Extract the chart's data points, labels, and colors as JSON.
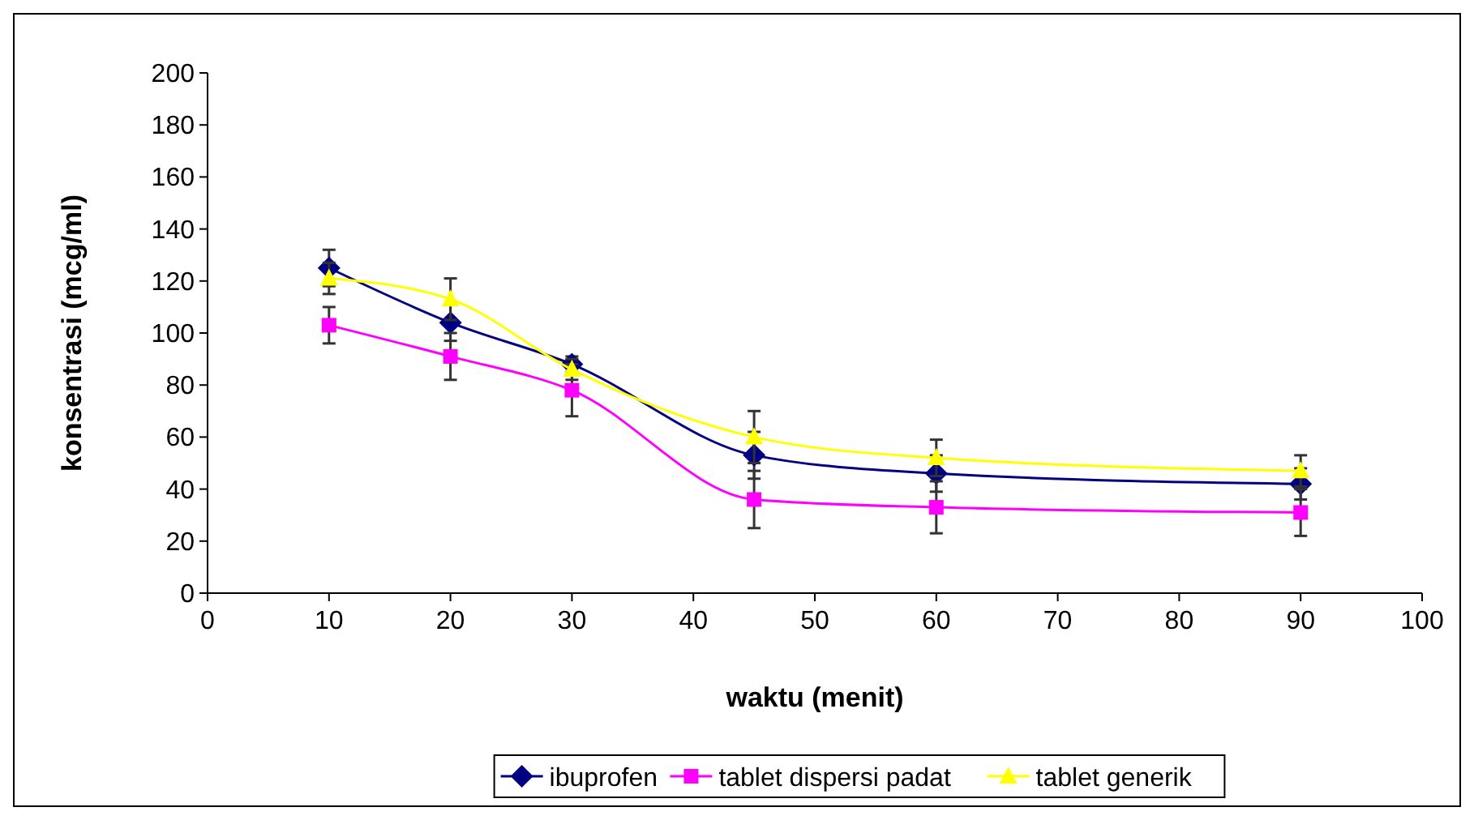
{
  "chart_data": {
    "type": "line",
    "xlabel": "waktu (menit)",
    "ylabel": "konsentrasi (mcg/ml)",
    "x": [
      10,
      20,
      30,
      45,
      60,
      90
    ],
    "xlim": [
      0,
      100
    ],
    "xticks": [
      0,
      10,
      20,
      30,
      40,
      50,
      60,
      70,
      80,
      90,
      100
    ],
    "ylim": [
      0,
      200
    ],
    "yticks": [
      0,
      20,
      40,
      60,
      80,
      100,
      120,
      140,
      160,
      180,
      200
    ],
    "grid": false,
    "legend": "bottom",
    "series": [
      {
        "name": "ibuprofen",
        "color": "#000080",
        "marker": "diamond",
        "values": [
          125,
          104,
          88,
          53,
          46,
          42
        ],
        "errors": [
          7,
          7,
          3,
          9,
          7,
          6
        ]
      },
      {
        "name": "tablet dispersi padat",
        "color": "#ff00ff",
        "marker": "square",
        "values": [
          103,
          91,
          78,
          36,
          33,
          31
        ],
        "errors": [
          7,
          9,
          10,
          11,
          10,
          9
        ]
      },
      {
        "name": "tablet generik",
        "color": "#ffff00",
        "marker": "triangle",
        "values": [
          121,
          113,
          86,
          60,
          52,
          47
        ],
        "errors": [
          6,
          8,
          4,
          10,
          7,
          6
        ]
      }
    ]
  }
}
